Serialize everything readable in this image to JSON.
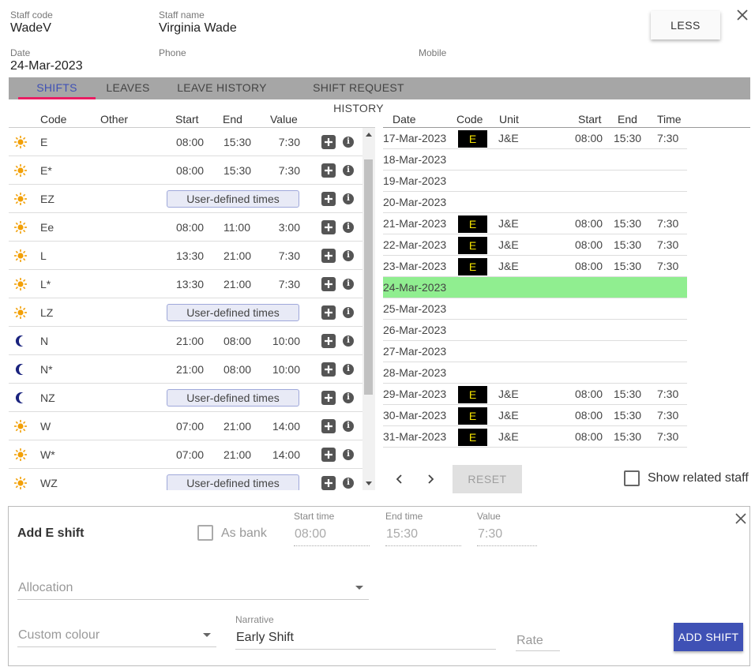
{
  "header": {
    "staff_code_label": "Staff code",
    "staff_code": "WadeV",
    "staff_name_label": "Staff name",
    "staff_name": "Virginia Wade",
    "date_label": "Date",
    "date": "24-Mar-2023",
    "phone_label": "Phone",
    "phone": "",
    "mobile_label": "Mobile",
    "mobile": "",
    "less_button": "LESS"
  },
  "tabs": [
    "SHIFTS",
    "LEAVES",
    "LEAVE HISTORY",
    "SHIFT REQUEST HISTORY"
  ],
  "shift_list": {
    "columns": [
      "Code",
      "Other",
      "Start",
      "End",
      "Value"
    ],
    "rows": [
      {
        "icon": "sun-icon",
        "code": "E",
        "start": "08:00",
        "end": "15:30",
        "value": "7:30"
      },
      {
        "icon": "sun-icon",
        "code": "E*",
        "start": "08:00",
        "end": "15:30",
        "value": "7:30"
      },
      {
        "icon": "sun-icon",
        "code": "EZ",
        "udt": "User-defined times"
      },
      {
        "icon": "sun-icon",
        "code": "Ee",
        "start": "08:00",
        "end": "11:00",
        "value": "3:00"
      },
      {
        "icon": "sun-icon",
        "code": "L",
        "start": "13:30",
        "end": "21:00",
        "value": "7:30"
      },
      {
        "icon": "sun-icon",
        "code": "L*",
        "start": "13:30",
        "end": "21:00",
        "value": "7:30"
      },
      {
        "icon": "sun-icon",
        "code": "LZ",
        "udt": "User-defined times"
      },
      {
        "icon": "moon-icon",
        "code": "N",
        "start": "21:00",
        "end": "08:00",
        "value": "10:00"
      },
      {
        "icon": "moon-icon",
        "code": "N*",
        "start": "21:00",
        "end": "08:00",
        "value": "10:00"
      },
      {
        "icon": "moon-icon",
        "code": "NZ",
        "udt": "User-defined times"
      },
      {
        "icon": "sun-icon",
        "code": "W",
        "start": "07:00",
        "end": "21:00",
        "value": "14:00"
      },
      {
        "icon": "sun-icon",
        "code": "W*",
        "start": "07:00",
        "end": "21:00",
        "value": "14:00"
      },
      {
        "icon": "sun-icon",
        "code": "WZ",
        "udt": "User-defined times"
      }
    ]
  },
  "calendar": {
    "columns": [
      "Date",
      "Code",
      "Unit",
      "Start",
      "End",
      "Time"
    ],
    "rows": [
      {
        "date": "17-Mar-2023",
        "code": "E",
        "unit": "J&E",
        "start": "08:00",
        "end": "15:30",
        "time": "7:30"
      },
      {
        "date": "18-Mar-2023"
      },
      {
        "date": "19-Mar-2023"
      },
      {
        "date": "20-Mar-2023"
      },
      {
        "date": "21-Mar-2023",
        "code": "E",
        "unit": "J&E",
        "start": "08:00",
        "end": "15:30",
        "time": "7:30"
      },
      {
        "date": "22-Mar-2023",
        "code": "E",
        "unit": "J&E",
        "start": "08:00",
        "end": "15:30",
        "time": "7:30"
      },
      {
        "date": "23-Mar-2023",
        "code": "E",
        "unit": "J&E",
        "start": "08:00",
        "end": "15:30",
        "time": "7:30"
      },
      {
        "date": "24-Mar-2023",
        "today": true
      },
      {
        "date": "25-Mar-2023"
      },
      {
        "date": "26-Mar-2023"
      },
      {
        "date": "27-Mar-2023"
      },
      {
        "date": "28-Mar-2023"
      },
      {
        "date": "29-Mar-2023",
        "code": "E",
        "unit": "J&E",
        "start": "08:00",
        "end": "15:30",
        "time": "7:30"
      },
      {
        "date": "30-Mar-2023",
        "code": "E",
        "unit": "J&E",
        "start": "08:00",
        "end": "15:30",
        "time": "7:30"
      },
      {
        "date": "31-Mar-2023",
        "code": "E",
        "unit": "J&E",
        "start": "08:00",
        "end": "15:30",
        "time": "7:30"
      }
    ],
    "reset_button": "RESET",
    "show_related_label": "Show related staff"
  },
  "add_shift": {
    "title": "Add E shift",
    "as_bank_label": "As bank",
    "start_time_label": "Start time",
    "start_time": "08:00",
    "end_time_label": "End time",
    "end_time": "15:30",
    "value_label": "Value",
    "value": "7:30",
    "allocation_placeholder": "Allocation",
    "custom_colour_placeholder": "Custom colour",
    "narrative_label": "Narrative",
    "narrative": "Early Shift",
    "rate_placeholder": "Rate",
    "add_button": "ADD SHIFT"
  },
  "colors": {
    "accent": "#3f51b5",
    "tab_indicator": "#e91e63",
    "tab_bar": "#a6a6a6",
    "today_row": "#90ee90",
    "code_badge_bg": "#000000",
    "code_badge_fg": "#f5e400",
    "sun": "#f2a007",
    "moon": "#1a237e"
  }
}
